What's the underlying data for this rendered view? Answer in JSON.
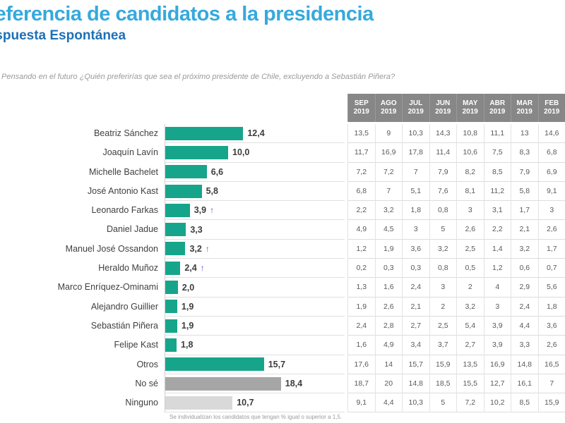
{
  "colors": {
    "title_blue": "#36a9dd",
    "subtitle_blue": "#1d70b7",
    "bar_teal": "#16a58a",
    "bar_no_se_gray": "#a6a6a6",
    "bar_ninguno_lightgray": "#d9d9d9",
    "table_header_gray": "#878787",
    "trend_arrow_purple": "#5c5cc5"
  },
  "chart_data": {
    "type": "bar",
    "orientation": "horizontal",
    "title": "Preferencia de candidatos a la presidencia",
    "subtitle": "Respuesta Espontánea",
    "question": "Pensando en el futuro ¿Quién preferirías que sea el próximo presidente de Chile, excluyendo a Sebastián Piñera?",
    "footnote": "Se individualizan los candidatos que tengan % igual o superior a 1,5.",
    "xlim": [
      0,
      20
    ],
    "value_suffix": "%",
    "columns": [
      {
        "month": "SEP",
        "year": "2019"
      },
      {
        "month": "AGO",
        "year": "2019"
      },
      {
        "month": "JUL",
        "year": "2019"
      },
      {
        "month": "JUN",
        "year": "2019"
      },
      {
        "month": "MAY",
        "year": "2019"
      },
      {
        "month": "ABR",
        "year": "2019"
      },
      {
        "month": "MAR",
        "year": "2019"
      },
      {
        "month": "FEB",
        "year": "2019"
      }
    ],
    "rows": [
      {
        "name": "Beatriz Sánchez",
        "value": 12.4,
        "value_label": "12,4",
        "arrow_up": false,
        "bar": "teal",
        "history": [
          "13,5",
          "9",
          "10,3",
          "14,3",
          "10,8",
          "11,1",
          "13",
          "14,6"
        ]
      },
      {
        "name": "Joaquín Lavín",
        "value": 10.0,
        "value_label": "10,0",
        "arrow_up": false,
        "bar": "teal",
        "history": [
          "11,7",
          "16,9",
          "17,8",
          "11,4",
          "10,6",
          "7,5",
          "8,3",
          "6,8"
        ]
      },
      {
        "name": "Michelle Bachelet",
        "value": 6.6,
        "value_label": "6,6",
        "arrow_up": false,
        "bar": "teal",
        "history": [
          "7,2",
          "7,2",
          "7",
          "7,9",
          "8,2",
          "8,5",
          "7,9",
          "6,9"
        ]
      },
      {
        "name": "José Antonio Kast",
        "value": 5.8,
        "value_label": "5,8",
        "arrow_up": false,
        "bar": "teal",
        "history": [
          "6,8",
          "7",
          "5,1",
          "7,6",
          "8,1",
          "11,2",
          "5,8",
          "9,1"
        ]
      },
      {
        "name": "Leonardo Farkas",
        "value": 3.9,
        "value_label": "3,9",
        "arrow_up": true,
        "bar": "teal",
        "history": [
          "2,2",
          "3,2",
          "1,8",
          "0,8",
          "3",
          "3,1",
          "1,7",
          "3"
        ]
      },
      {
        "name": "Daniel Jadue",
        "value": 3.3,
        "value_label": "3,3",
        "arrow_up": false,
        "bar": "teal",
        "history": [
          "4,9",
          "4,5",
          "3",
          "5",
          "2,6",
          "2,2",
          "2,1",
          "2,6"
        ]
      },
      {
        "name": "Manuel José  Ossandon",
        "value": 3.2,
        "value_label": "3,2",
        "arrow_up": true,
        "bar": "teal",
        "history": [
          "1,2",
          "1,9",
          "3,6",
          "3,2",
          "2,5",
          "1,4",
          "3,2",
          "1,7"
        ]
      },
      {
        "name": "Heraldo Muñoz",
        "value": 2.4,
        "value_label": "2,4",
        "arrow_up": true,
        "bar": "teal",
        "history": [
          "0,2",
          "0,3",
          "0,3",
          "0,8",
          "0,5",
          "1,2",
          "0,6",
          "0,7"
        ]
      },
      {
        "name": "Marco Enríquez-Ominami",
        "value": 2.0,
        "value_label": "2,0",
        "arrow_up": false,
        "bar": "teal",
        "history": [
          "1,3",
          "1,6",
          "2,4",
          "3",
          "2",
          "4",
          "2,9",
          "5,6"
        ]
      },
      {
        "name": "Alejandro Guillier",
        "value": 1.9,
        "value_label": "1,9",
        "arrow_up": false,
        "bar": "teal",
        "history": [
          "1,9",
          "2,6",
          "2,1",
          "2",
          "3,2",
          "3",
          "2,4",
          "1,8"
        ]
      },
      {
        "name": "Sebastián Piñera",
        "value": 1.9,
        "value_label": "1,9",
        "arrow_up": false,
        "bar": "teal",
        "history": [
          "2,4",
          "2,8",
          "2,7",
          "2,5",
          "5,4",
          "3,9",
          "4,4",
          "3,6"
        ]
      },
      {
        "name": "Felipe Kast",
        "value": 1.8,
        "value_label": "1,8",
        "arrow_up": false,
        "bar": "teal",
        "history": [
          "1,6",
          "4,9",
          "3,4",
          "3,7",
          "2,7",
          "3,9",
          "3,3",
          "2,6"
        ]
      },
      {
        "name": "Otros",
        "value": 15.7,
        "value_label": "15,7",
        "arrow_up": false,
        "bar": "teal",
        "history": [
          "17,6",
          "14",
          "15,7",
          "15,9",
          "13,5",
          "16,9",
          "14,8",
          "16,5"
        ]
      },
      {
        "name": "No sé",
        "value": 18.4,
        "value_label": "18,4",
        "arrow_up": false,
        "bar": "gray",
        "history": [
          "18,7",
          "20",
          "14,8",
          "18,5",
          "15,5",
          "12,7",
          "16,1",
          "7"
        ]
      },
      {
        "name": "Ninguno",
        "value": 10.7,
        "value_label": "10,7",
        "arrow_up": false,
        "bar": "lightgray",
        "history": [
          "9,1",
          "4,4",
          "10,3",
          "5",
          "7,2",
          "10,2",
          "8,5",
          "15,9"
        ]
      }
    ]
  }
}
